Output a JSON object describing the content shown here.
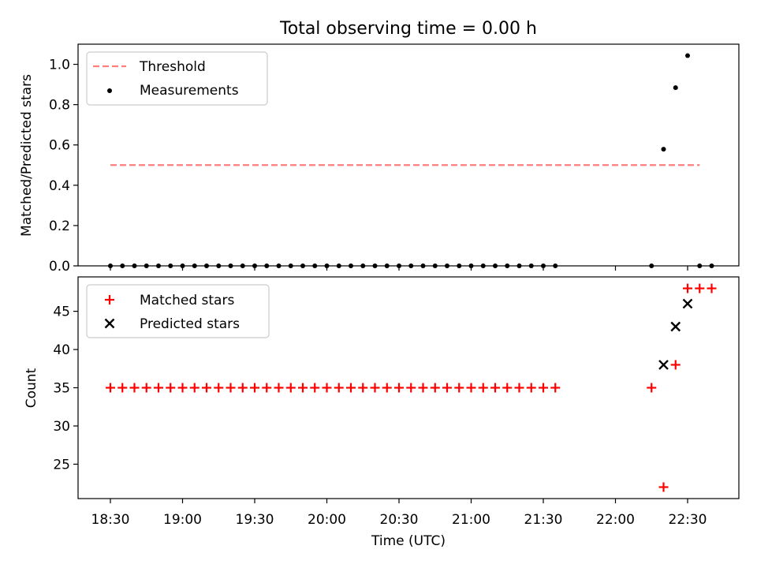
{
  "figure": {
    "title": "Total observing time = 0.00 h"
  },
  "chart_data": [
    {
      "type": "scatter",
      "ylabel": "Matched/Predicted stars",
      "xlabel": "",
      "ylim": [
        0,
        1.1
      ],
      "yticks": [
        0.0,
        0.2,
        0.4,
        0.6,
        0.8,
        1.0
      ],
      "ytick_labels": [
        "0.0",
        "0.2",
        "0.4",
        "0.6",
        "0.8",
        "1.0"
      ],
      "legend_position": "top-left",
      "colors": {
        "threshold": "#ff7f7f",
        "measurements": "#000000"
      },
      "series": [
        {
          "name": "Threshold",
          "kind": "dashed-line",
          "x": [
            "18:30",
            "22:35"
          ],
          "values": [
            0.5,
            0.5
          ]
        },
        {
          "name": "Measurements",
          "kind": "dots",
          "x": [
            "18:30",
            "18:35",
            "18:40",
            "18:45",
            "18:50",
            "18:55",
            "19:00",
            "19:05",
            "19:10",
            "19:15",
            "19:20",
            "19:25",
            "19:30",
            "19:35",
            "19:40",
            "19:45",
            "19:50",
            "19:55",
            "20:00",
            "20:05",
            "20:10",
            "20:15",
            "20:20",
            "20:25",
            "20:30",
            "20:35",
            "20:40",
            "20:45",
            "20:50",
            "20:55",
            "21:00",
            "21:05",
            "21:10",
            "21:15",
            "21:20",
            "21:25",
            "21:30",
            "21:35",
            "22:15",
            "22:20",
            "22:25",
            "22:30",
            "22:35",
            "22:40"
          ],
          "values": [
            0,
            0,
            0,
            0,
            0,
            0,
            0,
            0,
            0,
            0,
            0,
            0,
            0,
            0,
            0,
            0,
            0,
            0,
            0,
            0,
            0,
            0,
            0,
            0,
            0,
            0,
            0,
            0,
            0,
            0,
            0,
            0,
            0,
            0,
            0,
            0,
            0,
            0,
            0,
            0.579,
            0.884,
            1.043,
            0,
            0
          ]
        }
      ]
    },
    {
      "type": "scatter",
      "ylabel": "Count",
      "xlabel": "Time (UTC)",
      "ylim": [
        20.5,
        49.5
      ],
      "yticks": [
        25,
        30,
        35,
        40,
        45
      ],
      "ytick_labels": [
        "25",
        "30",
        "35",
        "40",
        "45"
      ],
      "xticks": [
        "18:30",
        "19:00",
        "19:30",
        "20:00",
        "20:30",
        "21:00",
        "21:30",
        "22:00",
        "22:30"
      ],
      "legend_position": "top-left",
      "colors": {
        "matched": "#ff0000",
        "predicted": "#000000"
      },
      "series": [
        {
          "name": "Matched stars",
          "marker": "plus",
          "x": [
            "18:30",
            "18:35",
            "18:40",
            "18:45",
            "18:50",
            "18:55",
            "19:00",
            "19:05",
            "19:10",
            "19:15",
            "19:20",
            "19:25",
            "19:30",
            "19:35",
            "19:40",
            "19:45",
            "19:50",
            "19:55",
            "20:00",
            "20:05",
            "20:10",
            "20:15",
            "20:20",
            "20:25",
            "20:30",
            "20:35",
            "20:40",
            "20:45",
            "20:50",
            "20:55",
            "21:00",
            "21:05",
            "21:10",
            "21:15",
            "21:20",
            "21:25",
            "21:30",
            "21:35",
            "22:15",
            "22:20",
            "22:25",
            "22:30",
            "22:35",
            "22:40"
          ],
          "values": [
            35,
            35,
            35,
            35,
            35,
            35,
            35,
            35,
            35,
            35,
            35,
            35,
            35,
            35,
            35,
            35,
            35,
            35,
            35,
            35,
            35,
            35,
            35,
            35,
            35,
            35,
            35,
            35,
            35,
            35,
            35,
            35,
            35,
            35,
            35,
            35,
            35,
            35,
            35,
            22,
            38,
            48,
            48,
            48
          ]
        },
        {
          "name": "Predicted stars",
          "marker": "x",
          "x": [
            "22:20",
            "22:25",
            "22:30"
          ],
          "values": [
            38,
            43,
            46
          ]
        }
      ]
    }
  ]
}
